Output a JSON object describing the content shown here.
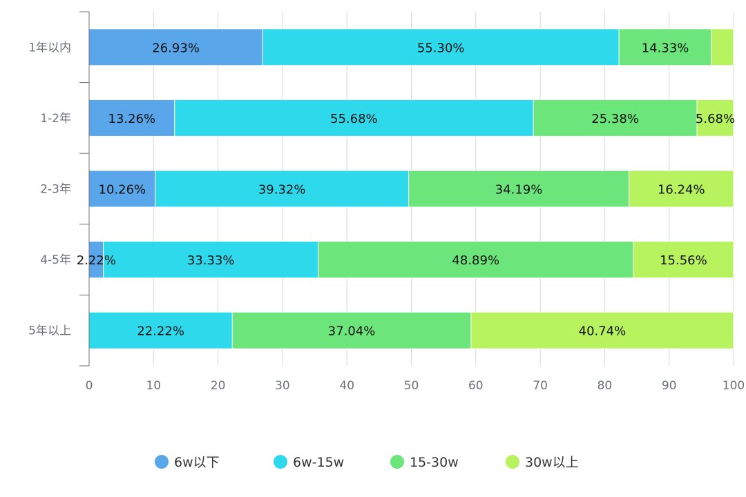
{
  "chart_data": {
    "type": "bar",
    "orientation": "horizontal",
    "stacked": true,
    "categories": [
      "1年以内",
      "1-2年",
      "2-3年",
      "4-5年",
      "5年以上"
    ],
    "series": [
      {
        "name": "6w以下",
        "color": "#5aa6ea",
        "values": [
          26.93,
          13.26,
          10.26,
          2.22,
          0
        ],
        "labels": [
          "26.93%",
          "13.26%",
          "10.26%",
          "2.22%",
          ""
        ]
      },
      {
        "name": "6w-15w",
        "color": "#2ed9ec",
        "values": [
          55.3,
          55.68,
          39.32,
          33.33,
          22.22
        ],
        "labels": [
          "55.30%",
          "55.68%",
          "39.32%",
          "33.33%",
          "22.22%"
        ]
      },
      {
        "name": "15-30w",
        "color": "#6ce57a",
        "values": [
          14.33,
          25.38,
          34.19,
          48.89,
          37.04
        ],
        "labels": [
          "14.33%",
          "25.38%",
          "34.19%",
          "48.89%",
          "37.04%"
        ]
      },
      {
        "name": "30w以上",
        "color": "#b6f35e",
        "values": [
          3.44,
          5.68,
          16.24,
          15.56,
          40.74
        ],
        "labels": [
          "",
          "5.68%",
          "16.24%",
          "15.56%",
          "40.74%"
        ]
      }
    ],
    "xticks": [
      "0",
      "10",
      "20",
      "30",
      "40",
      "50",
      "60",
      "70",
      "80",
      "90",
      "100"
    ],
    "xlim": [
      0,
      100
    ],
    "grid": true,
    "legend_position": "bottom-center"
  }
}
